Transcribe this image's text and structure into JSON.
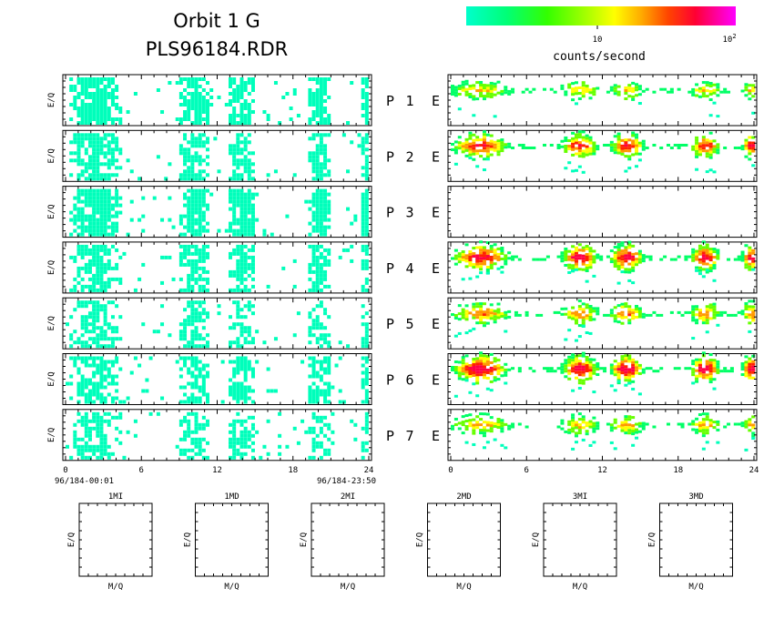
{
  "header": {
    "title_line1": "Orbit 1 G",
    "title_line2": "PLS96184.RDR"
  },
  "colorbar": {
    "label": "counts/second",
    "tick_10": "10",
    "tick_100_base": "10",
    "tick_100_exp": "2",
    "colors": [
      "#00ffcc",
      "#00ff66",
      "#33ff00",
      "#99ff00",
      "#ffff00",
      "#ff9900",
      "#ff3300",
      "#ff0044",
      "#ff00aa",
      "#ff00ff"
    ]
  },
  "time_axis": {
    "ticks": [
      "0",
      "6",
      "12",
      "18",
      "24"
    ],
    "start_label": "96/184-00:01",
    "end_label": "96/184-23:50"
  },
  "panel_ylabel": "E/Q",
  "rows": [
    {
      "sensor": "P",
      "num": "1",
      "right_label": "E"
    },
    {
      "sensor": "P",
      "num": "2",
      "right_label": "E"
    },
    {
      "sensor": "P",
      "num": "3",
      "right_label": "E"
    },
    {
      "sensor": "P",
      "num": "4",
      "right_label": "E"
    },
    {
      "sensor": "P",
      "num": "5",
      "right_label": "E"
    },
    {
      "sensor": "P",
      "num": "6",
      "right_label": "E"
    },
    {
      "sensor": "P",
      "num": "7",
      "right_label": "E"
    }
  ],
  "mass_panels": {
    "ylabel": "E/Q",
    "xlabel": "M/Q",
    "titles": [
      "1MI",
      "1MD",
      "2MI",
      "2MD",
      "3MI",
      "3MD"
    ]
  },
  "chart_data": {
    "type": "heatmap",
    "x_range": [
      0,
      24
    ],
    "x_ticks": [
      0,
      6,
      12,
      18,
      24
    ],
    "color_scale": "log",
    "color_range": [
      1,
      100
    ],
    "activity_intervals_hours": [
      [
        0.3,
        4.2
      ],
      [
        9.0,
        11.2
      ],
      [
        12.8,
        14.8
      ],
      [
        19.2,
        20.8
      ],
      [
        23.3,
        24
      ]
    ],
    "left_panels_relative_intensity": [
      0.9,
      0.85,
      0.95,
      0.8,
      0.6,
      0.75,
      0.65
    ],
    "right_panels_relative_intensity": [
      0.55,
      0.85,
      0.0,
      0.95,
      0.7,
      1.0,
      0.6
    ]
  }
}
